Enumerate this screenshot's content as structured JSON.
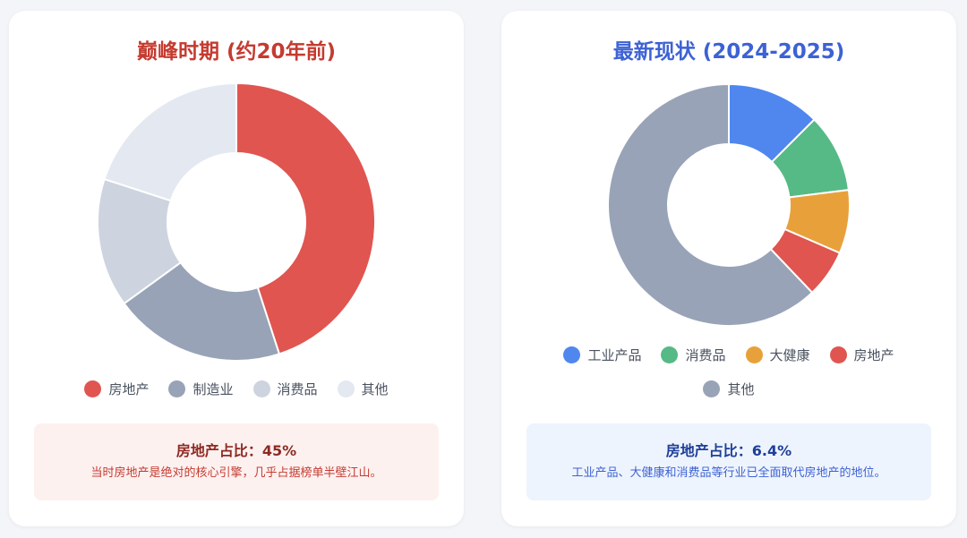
{
  "colors": {
    "real_estate": "#e05550",
    "manufacturing": "#98a3b7",
    "consumer": "#cdd4df",
    "other_light": "#e3e8f1",
    "industrial": "#4f87ef",
    "consumer_green": "#55ba86",
    "health": "#e8a13a",
    "other_gray": "#98a3b7",
    "left_title": "#c53b30",
    "right_title": "#3d62d4"
  },
  "left_panel": {
    "title": "巅峰时期 (约20年前)",
    "info_title": "房地产占比：45%",
    "info_text": "当时房地产是绝对的核心引擎，几乎占据榜单半壁江山。"
  },
  "right_panel": {
    "title": "最新现状 (2024-2025)",
    "info_title": "房地产占比：6.4%",
    "info_text": "工业产品、大健康和消费品等行业已全面取代房地产的地位。"
  },
  "chart_data": [
    {
      "type": "pie",
      "variant": "donut",
      "title": "巅峰时期 (约20年前)",
      "legend_position": "bottom",
      "categories": [
        "房地产",
        "制造业",
        "消费品",
        "其他"
      ],
      "values": [
        45,
        20,
        15,
        20
      ],
      "colors": [
        "#e05550",
        "#98a3b7",
        "#cdd4df",
        "#e3e8f1"
      ]
    },
    {
      "type": "pie",
      "variant": "donut",
      "title": "最新现状 (2024-2025)",
      "legend_position": "bottom",
      "categories": [
        "工业产品",
        "消费品",
        "大健康",
        "房地产",
        "其他"
      ],
      "values": [
        12.5,
        10.5,
        8.5,
        6.4,
        62.1
      ],
      "colors": [
        "#4f87ef",
        "#55ba86",
        "#e8a13a",
        "#e05550",
        "#98a3b7"
      ]
    }
  ]
}
